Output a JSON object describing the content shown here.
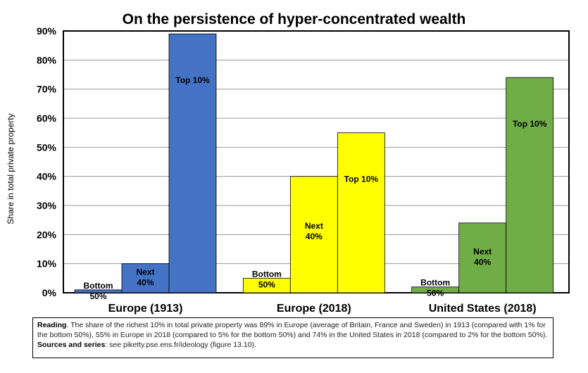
{
  "chart_data": {
    "type": "bar",
    "title": "On the persistence of hyper-concentrated wealth",
    "ylabel": "Share in total private property",
    "xlabel": "",
    "ylim": [
      0,
      0.9
    ],
    "yticks": [
      0,
      0.1,
      0.2,
      0.3,
      0.4,
      0.5,
      0.6,
      0.7,
      0.8,
      0.9
    ],
    "ytick_labels": [
      "0%",
      "10%",
      "20%",
      "30%",
      "40%",
      "50%",
      "60%",
      "70%",
      "80%",
      "90%"
    ],
    "grid": true,
    "categories": [
      "Europe (1913)",
      "Europe (2018)",
      "United States (2018)"
    ],
    "groups": [
      {
        "name": "Europe (1913)",
        "color": "#4472c4",
        "bars": [
          {
            "label_lines": [
              "Bottom",
              "50%"
            ],
            "value": 0.01
          },
          {
            "label_lines": [
              "Next",
              "40%"
            ],
            "value": 0.1
          },
          {
            "label_lines": [
              "Top 10%"
            ],
            "value": 0.89
          }
        ]
      },
      {
        "name": "Europe (2018)",
        "color": "#ffff00",
        "bars": [
          {
            "label_lines": [
              "Bottom",
              "50%"
            ],
            "value": 0.05
          },
          {
            "label_lines": [
              "Next",
              "40%"
            ],
            "value": 0.4
          },
          {
            "label_lines": [
              "Top 10%"
            ],
            "value": 0.55
          }
        ]
      },
      {
        "name": "United States (2018)",
        "color": "#70ad47",
        "bars": [
          {
            "label_lines": [
              "Bottom",
              "50%"
            ],
            "value": 0.02
          },
          {
            "label_lines": [
              "Next",
              "40%"
            ],
            "value": 0.24
          },
          {
            "label_lines": [
              "Top 10%"
            ],
            "value": 0.74
          }
        ]
      }
    ]
  },
  "note": {
    "reading_label": "Reading",
    "reading_text": ". The share of the richest 10% in total private property was 89% in Europe (average of Britain, France and Sweden) in 1913 (compared with 1% for the bottom 50%), 55% in Europe in 2018 (compared to 5% for the bottom 50%) and 74% in the United States in 2018 (compared to 2% for the bottom 50%).",
    "sources_label": "Sources and series",
    "sources_text": ": see piketty.pse.ens.fr/ideology (figure 13.10)."
  }
}
